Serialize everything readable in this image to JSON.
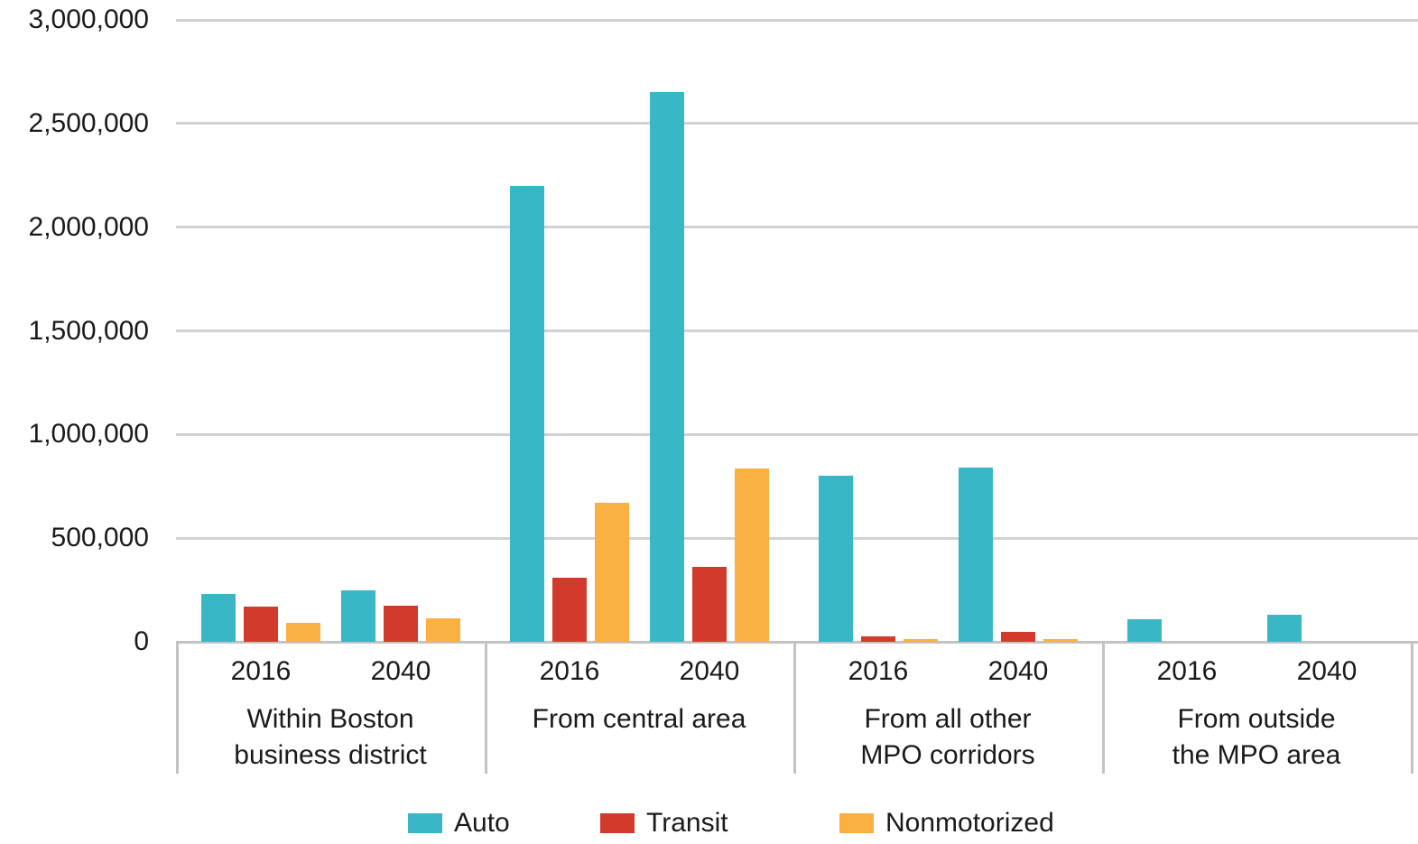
{
  "chart_data": {
    "type": "bar",
    "title": "",
    "xlabel": "",
    "ylabel": "",
    "ylim": [
      0,
      3000000
    ],
    "grid": true,
    "legend_position": "bottom",
    "yticks": [
      {
        "value": 3000000,
        "label": "3,000,000"
      },
      {
        "value": 2500000,
        "label": "2,500,000"
      },
      {
        "value": 2000000,
        "label": "2,000,000"
      },
      {
        "value": 1500000,
        "label": "1,500,000"
      },
      {
        "value": 1000000,
        "label": "1,000,000"
      },
      {
        "value": 500000,
        "label": "500,000"
      },
      {
        "value": 0,
        "label": "0"
      }
    ],
    "series": [
      {
        "name": "Auto",
        "color": "#3AB7C6"
      },
      {
        "name": "Transit",
        "color": "#D23B2C"
      },
      {
        "name": "Nonmotorized",
        "color": "#FBB042"
      }
    ],
    "x_sublabels": [
      "2016",
      "2040"
    ],
    "groups": [
      {
        "label": "Within Boston business district",
        "label_lines": [
          "Within Boston",
          "business district"
        ],
        "clusters": [
          {
            "year": "2016",
            "values": [
              230000,
              170000,
              90000
            ]
          },
          {
            "year": "2040",
            "values": [
              250000,
              175000,
              115000
            ]
          }
        ]
      },
      {
        "label": "From central area",
        "label_lines": [
          "From central area"
        ],
        "clusters": [
          {
            "year": "2016",
            "values": [
              2200000,
              310000,
              670000
            ]
          },
          {
            "year": "2040",
            "values": [
              2650000,
              360000,
              835000
            ]
          }
        ]
      },
      {
        "label": "From all other MPO corridors",
        "label_lines": [
          "From all other",
          "MPO corridors"
        ],
        "clusters": [
          {
            "year": "2016",
            "values": [
              800000,
              25000,
              15000
            ]
          },
          {
            "year": "2040",
            "values": [
              840000,
              50000,
              15000
            ]
          }
        ]
      },
      {
        "label": "From outside the MPO area",
        "label_lines": [
          "From outside",
          "the MPO area"
        ],
        "clusters": [
          {
            "year": "2016",
            "values": [
              110000,
              0,
              0
            ]
          },
          {
            "year": "2040",
            "values": [
              130000,
              0,
              0
            ]
          }
        ]
      }
    ],
    "colors": {
      "gridline": "#D2D2D2",
      "axis": "#C3C3C3",
      "text": "#1A1A1A",
      "background": "#FFFFFF"
    }
  }
}
